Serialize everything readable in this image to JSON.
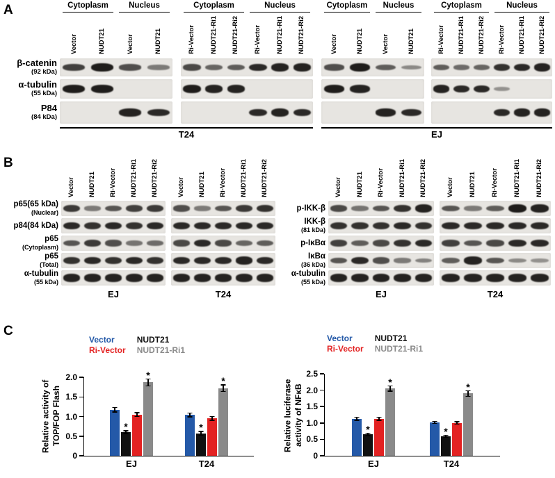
{
  "labels": {
    "a": "A",
    "b": "B",
    "c": "C"
  },
  "panelA": {
    "row_labels": [
      {
        "name": "β-catenin",
        "sub": "(92 kDa)"
      },
      {
        "name": "α-tubulin",
        "sub": "(55 kDa)"
      },
      {
        "name": "P84",
        "sub": "(84 kDa)"
      }
    ],
    "groups": [
      {
        "cell_line": "T24",
        "blocks": [
          {
            "headers": [
              {
                "label": "Cytoplasm",
                "span": 2
              },
              {
                "label": "Nucleus",
                "span": 2
              }
            ],
            "lanes": [
              "Vector",
              "NUDT21",
              "Vector",
              "NUDT21"
            ],
            "rows": [
              [
                0.7,
                0.95,
                0.6,
                0.3
              ],
              [
                0.95,
                0.95,
                0,
                0
              ],
              [
                0,
                0,
                0.9,
                0.85
              ]
            ]
          },
          {
            "headers": [
              {
                "label": "Cytoplasm",
                "span": 3
              },
              {
                "label": "Nucleus",
                "span": 3
              }
            ],
            "lanes": [
              "Ri-Vector",
              "NUDT21-Ri1",
              "NUDT21-Ri2",
              "Ri-Vector",
              "NUDT21-Ri1",
              "NUDT21-Ri2"
            ],
            "rows": [
              [
                0.65,
                0.45,
                0.5,
                0.85,
                0.9,
                0.9
              ],
              [
                0.95,
                0.9,
                0.9,
                0,
                0,
                0
              ],
              [
                0,
                0,
                0,
                0.85,
                0.9,
                0.85
              ]
            ]
          }
        ]
      },
      {
        "cell_line": "EJ",
        "blocks": [
          {
            "headers": [
              {
                "label": "Cytoplasm",
                "span": 2
              },
              {
                "label": "Nucleus",
                "span": 2
              }
            ],
            "lanes": [
              "Vector",
              "NUDT21",
              "Vector",
              "NUDT21"
            ],
            "rows": [
              [
                0.6,
                0.95,
                0.5,
                0.2
              ],
              [
                0.95,
                0.9,
                0,
                0
              ],
              [
                0,
                0,
                0.9,
                0.85
              ]
            ]
          },
          {
            "headers": [
              {
                "label": "Cytoplasm",
                "span": 3
              },
              {
                "label": "Nucleus",
                "span": 3
              }
            ],
            "lanes": [
              "Ri-Vector",
              "NUDT21-Ri1",
              "NUDT21-Ri2",
              "Ri-Vector",
              "NUDT21-Ri1",
              "NUDT21-Ri2"
            ],
            "rows": [
              [
                0.5,
                0.4,
                0.45,
                0.8,
                0.85,
                0.9
              ],
              [
                0.9,
                0.85,
                0.85,
                0.15,
                0,
                0
              ],
              [
                0,
                0,
                0,
                0.85,
                0.9,
                0.9
              ]
            ]
          }
        ]
      }
    ]
  },
  "panelB": {
    "left": {
      "row_labels": [
        {
          "name": "p65(65 kDa)",
          "sub": "(Nuclear)"
        },
        {
          "name": "p84(84 kDa)",
          "sub": ""
        },
        {
          "name": "p65",
          "sub": "(Cytoplasm)"
        },
        {
          "name": "p65",
          "sub": "(Total)"
        },
        {
          "name": "α-tubulin",
          "sub": "(55 kDa)"
        }
      ],
      "lanes": [
        "Vector",
        "NUDT21",
        "Ri-Vector",
        "NUDT21-Ri1",
        "NUDT21-Ri2"
      ],
      "blocks": [
        {
          "cell_line": "EJ",
          "rows": [
            [
              0.75,
              0.3,
              0.55,
              0.7,
              0.75
            ],
            [
              0.85,
              0.8,
              0.85,
              0.8,
              0.85
            ],
            [
              0.55,
              0.75,
              0.6,
              0.35,
              0.4
            ],
            [
              0.8,
              0.85,
              0.8,
              0.85,
              0.8
            ],
            [
              0.9,
              0.9,
              0.9,
              0.9,
              0.9
            ]
          ]
        },
        {
          "cell_line": "T24",
          "rows": [
            [
              0.6,
              0.3,
              0.55,
              0.75,
              0.8
            ],
            [
              0.85,
              0.85,
              0.85,
              0.85,
              0.85
            ],
            [
              0.65,
              0.85,
              0.65,
              0.45,
              0.5
            ],
            [
              0.85,
              0.85,
              0.85,
              0.9,
              0.85
            ],
            [
              0.9,
              0.9,
              0.9,
              0.9,
              0.9
            ]
          ]
        }
      ]
    },
    "right": {
      "row_labels": [
        {
          "name": "p-IKK-β",
          "sub": ""
        },
        {
          "name": "IKK-β",
          "sub": "(81 kDa)"
        },
        {
          "name": "p-IκBα",
          "sub": ""
        },
        {
          "name": "IκBα",
          "sub": "(36 kDa)"
        },
        {
          "name": "α-tubulin",
          "sub": "(55 kDa)"
        }
      ],
      "lanes": [
        "Vector",
        "NUDT21",
        "Ri-Vector",
        "NUDT21-Ri1",
        "NUDT21-Ri2"
      ],
      "blocks": [
        {
          "cell_line": "EJ",
          "rows": [
            [
              0.65,
              0.35,
              0.55,
              0.8,
              0.9
            ],
            [
              0.8,
              0.8,
              0.8,
              0.85,
              0.8
            ],
            [
              0.7,
              0.5,
              0.65,
              0.8,
              0.85
            ],
            [
              0.55,
              0.85,
              0.6,
              0.3,
              0.25
            ],
            [
              0.9,
              0.9,
              0.9,
              0.9,
              0.9
            ]
          ]
        },
        {
          "cell_line": "T24",
          "rows": [
            [
              0.55,
              0.3,
              0.5,
              0.95,
              0.9
            ],
            [
              0.85,
              0.85,
              0.85,
              0.85,
              0.85
            ],
            [
              0.7,
              0.55,
              0.65,
              0.85,
              0.85
            ],
            [
              0.5,
              0.9,
              0.55,
              0.2,
              0.15
            ],
            [
              0.9,
              0.9,
              0.9,
              0.9,
              0.9
            ]
          ]
        }
      ]
    }
  },
  "panelC": {
    "legend": [
      {
        "label": "Vector",
        "color": "#2459a8"
      },
      {
        "label": "NUDT21",
        "color": "#111111"
      },
      {
        "label": "Ri-Vector",
        "color": "#e32222"
      },
      {
        "label": "NUDT21-Ri1",
        "color": "#8a8a8a"
      }
    ]
  },
  "chart_data": [
    {
      "type": "bar",
      "title": "",
      "ylabel": "Relative activity of TOP/FOP Flash",
      "xlabel": "",
      "categories": [
        "EJ",
        "T24"
      ],
      "legend_position": "top",
      "grid": false,
      "ylim": [
        0,
        2.0
      ],
      "yticks": [
        "0",
        "0.5",
        "1.0",
        "1.5",
        "2.0"
      ],
      "series": [
        {
          "name": "Vector",
          "color": "#2459a8",
          "values": [
            1.17,
            1.04
          ],
          "errors": [
            0.07,
            0.06
          ],
          "sig": [
            false,
            false
          ]
        },
        {
          "name": "NUDT21",
          "color": "#111111",
          "values": [
            0.6,
            0.57
          ],
          "errors": [
            0.05,
            0.06
          ],
          "sig": [
            true,
            true
          ]
        },
        {
          "name": "Ri-Vector",
          "color": "#e32222",
          "values": [
            1.05,
            0.95
          ],
          "errors": [
            0.06,
            0.06
          ],
          "sig": [
            false,
            false
          ]
        },
        {
          "name": "NUDT21-Ri1",
          "color": "#8a8a8a",
          "values": [
            1.87,
            1.72
          ],
          "errors": [
            0.1,
            0.1
          ],
          "sig": [
            true,
            true
          ]
        }
      ]
    },
    {
      "type": "bar",
      "title": "",
      "ylabel": "Relative luciferase activity of NFκB",
      "xlabel": "",
      "categories": [
        "EJ",
        "T24"
      ],
      "legend_position": "top",
      "grid": false,
      "ylim": [
        0,
        2.5
      ],
      "yticks": [
        "0",
        "0.5",
        "1.0",
        "1.5",
        "2.0",
        "2.5"
      ],
      "series": [
        {
          "name": "Vector",
          "color": "#2459a8",
          "values": [
            1.13,
            1.02
          ],
          "errors": [
            0.06,
            0.05
          ],
          "sig": [
            false,
            false
          ]
        },
        {
          "name": "NUDT21",
          "color": "#111111",
          "values": [
            0.65,
            0.6
          ],
          "errors": [
            0.05,
            0.04
          ],
          "sig": [
            true,
            true
          ]
        },
        {
          "name": "Ri-Vector",
          "color": "#e32222",
          "values": [
            1.13,
            1.0
          ],
          "errors": [
            0.06,
            0.05
          ],
          "sig": [
            false,
            false
          ]
        },
        {
          "name": "NUDT21-Ri1",
          "color": "#8a8a8a",
          "values": [
            2.05,
            1.9
          ],
          "errors": [
            0.1,
            0.1
          ],
          "sig": [
            true,
            true
          ]
        }
      ]
    }
  ]
}
